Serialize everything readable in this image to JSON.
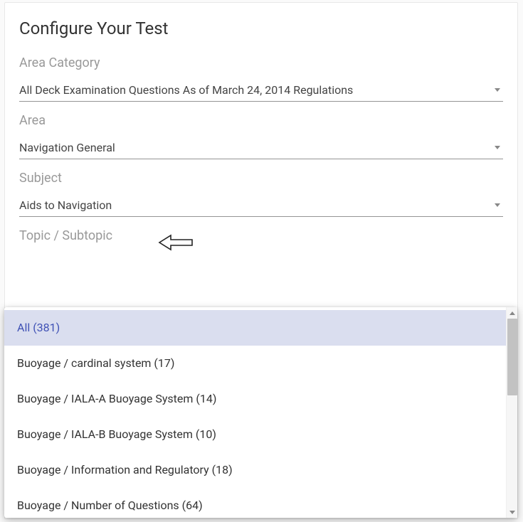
{
  "title": "Configure Your Test",
  "fields": {
    "area_category": {
      "label": "Area Category",
      "value": "All Deck Examination Questions As of March 24, 2014 Regulations"
    },
    "area": {
      "label": "Area",
      "value": "Navigation General"
    },
    "subject": {
      "label": "Subject",
      "value": "Aids to Navigation"
    },
    "topic": {
      "label": "Topic / Subtopic"
    }
  },
  "topic_options": [
    {
      "label": "All (381)",
      "selected": true
    },
    {
      "label": "Buoyage / cardinal system (17)",
      "selected": false
    },
    {
      "label": "Buoyage / IALA-A Buoyage System (14)",
      "selected": false
    },
    {
      "label": "Buoyage / IALA-B Buoyage System (10)",
      "selected": false
    },
    {
      "label": "Buoyage / Information and Regulatory (18)",
      "selected": false
    },
    {
      "label": "Buoyage / Number of Questions (64)",
      "selected": false
    }
  ],
  "colors": {
    "label_muted": "#999999",
    "text": "#333333",
    "underline": "#949494",
    "selected_bg": "#dadeef",
    "selected_text": "#3f51b5",
    "card_bg": "#ffffff",
    "body_bg": "#fafafa",
    "scrollbar_thumb": "#c2c2c2"
  }
}
